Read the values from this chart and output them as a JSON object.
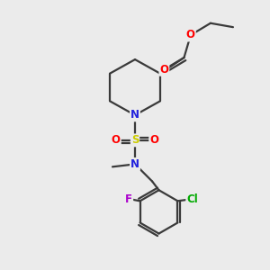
{
  "bg_color": "#ebebeb",
  "bond_color": "#3a3a3a",
  "bond_width": 1.6,
  "atom_colors": {
    "O": "#ff0000",
    "N": "#2222dd",
    "S": "#cccc00",
    "Cl": "#00aa00",
    "F": "#aa00cc",
    "C": "#3a3a3a"
  },
  "font_size_atom": 8.5
}
